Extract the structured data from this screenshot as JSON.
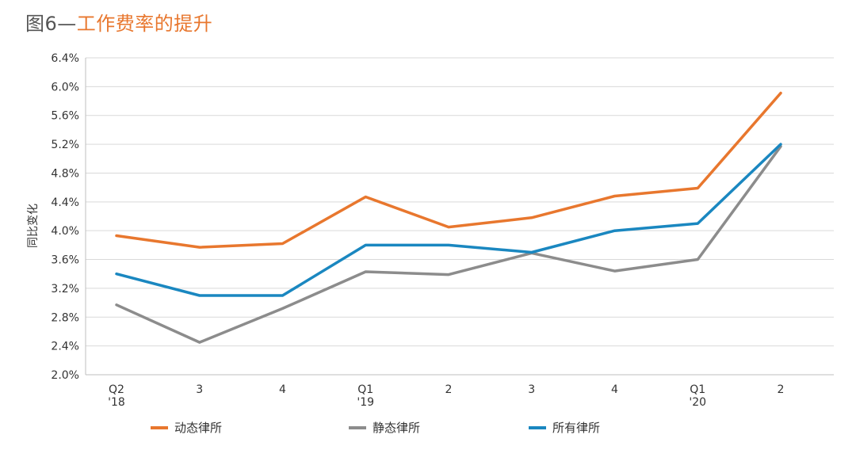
{
  "title": {
    "prefix": "图6—",
    "text": "工作费率的提升"
  },
  "chart_data": {
    "type": "line",
    "title": "图6—工作费率的提升",
    "ylabel": "同比变化",
    "xlabel": "",
    "categories": [
      [
        "Q2",
        "'18"
      ],
      [
        "3"
      ],
      [
        "4"
      ],
      [
        "Q1",
        "'19"
      ],
      [
        "2"
      ],
      [
        "3"
      ],
      [
        "4"
      ],
      [
        "Q1",
        "'20"
      ],
      [
        "2"
      ]
    ],
    "ylim": [
      2.0,
      6.4
    ],
    "yticks": [
      2.0,
      2.4,
      2.8,
      3.2,
      3.6,
      4.0,
      4.4,
      4.8,
      5.2,
      5.6,
      6.0,
      6.4
    ],
    "ytick_format": "percent_1dp",
    "grid": "horizontal",
    "legend_position": "bottom",
    "series": [
      {
        "name": "动态律所",
        "color": "#e8772e",
        "values": [
          3.93,
          3.77,
          3.82,
          4.47,
          4.05,
          4.18,
          4.48,
          4.59,
          5.91
        ]
      },
      {
        "name": "静态律所",
        "color": "#8c8c8c",
        "values": [
          2.97,
          2.45,
          2.92,
          3.43,
          3.39,
          3.69,
          3.44,
          3.6,
          5.17
        ]
      },
      {
        "name": "所有律所",
        "color": "#1a87c0",
        "values": [
          3.4,
          3.1,
          3.1,
          3.8,
          3.8,
          3.7,
          4.0,
          4.1,
          5.2
        ]
      }
    ]
  }
}
